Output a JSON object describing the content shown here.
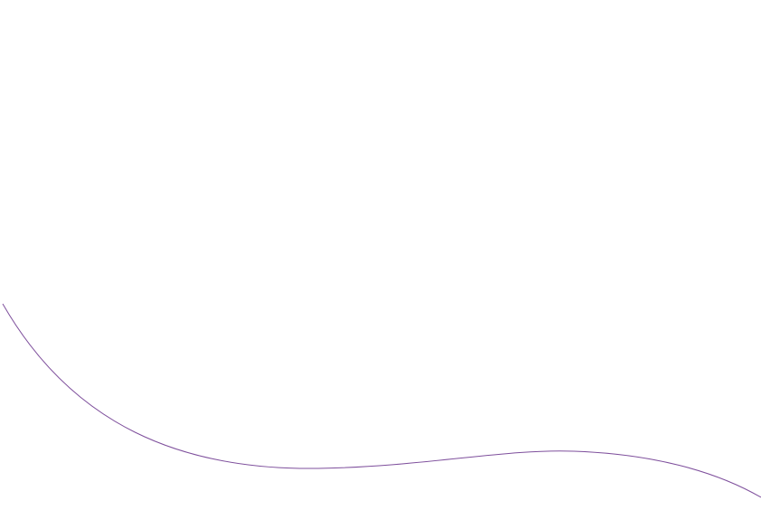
{
  "background_color": "#ffffff",
  "curve": {
    "color": "#7e4f9c"
  }
}
